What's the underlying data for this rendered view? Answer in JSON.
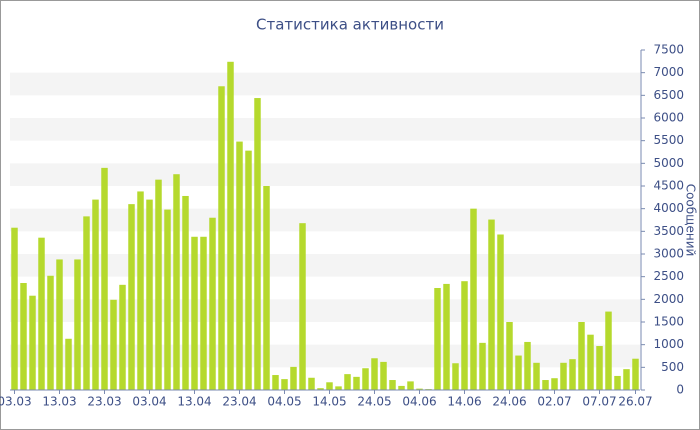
{
  "chart_data": {
    "type": "bar",
    "title": "Статистика активности",
    "y_label": "Сообщений",
    "categories": [
      "03.03",
      null,
      null,
      null,
      null,
      "13.03",
      null,
      null,
      null,
      null,
      "23.03",
      null,
      null,
      null,
      null,
      "03.04",
      null,
      null,
      null,
      null,
      "13.04",
      null,
      null,
      null,
      null,
      "23.04",
      null,
      null,
      null,
      null,
      "04.05",
      null,
      null,
      null,
      null,
      "14.05",
      null,
      null,
      null,
      null,
      "24.05",
      null,
      null,
      null,
      null,
      "04.06",
      null,
      null,
      null,
      null,
      "14.06",
      null,
      null,
      null,
      null,
      "24.06",
      null,
      null,
      null,
      null,
      "02.07",
      null,
      null,
      null,
      null,
      "07.07",
      null,
      null,
      null,
      "26.07"
    ],
    "values": [
      3580,
      2360,
      2080,
      3360,
      2520,
      2880,
      1130,
      2880,
      3830,
      4200,
      4900,
      1990,
      2320,
      4100,
      4380,
      4200,
      4640,
      3980,
      4760,
      4280,
      3380,
      3380,
      3800,
      6700,
      7240,
      5480,
      5280,
      6440,
      4500,
      330,
      240,
      510,
      3680,
      270,
      40,
      170,
      80,
      350,
      290,
      480,
      700,
      620,
      220,
      90,
      190,
      30,
      20,
      2250,
      2340,
      590,
      2400,
      4000,
      1040,
      3760,
      3430,
      1500,
      760,
      1060,
      600,
      220,
      260,
      600,
      680,
      1500,
      1220,
      970,
      1730,
      310,
      460,
      690
    ],
    "color": "#b5d92d",
    "ylim": [
      0,
      7500
    ],
    "yticks": [
      0,
      500,
      1000,
      1500,
      2000,
      2500,
      3000,
      3500,
      4000,
      4500,
      5000,
      5500,
      6000,
      6500,
      7000,
      7500
    ],
    "y_axis_side": "right",
    "grid_bands": true
  }
}
